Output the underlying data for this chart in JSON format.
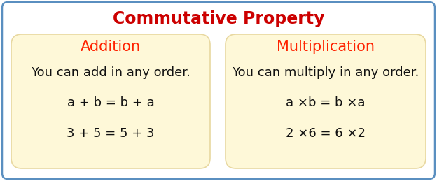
{
  "title": "Commutative Property",
  "title_color": "#cc0000",
  "title_fontsize": 17,
  "background_color": "#ffffff",
  "border_color": "#5a8fc0",
  "box_fill_color": "#fef8d8",
  "box_edge_color": "#e8d8a0",
  "left_box": {
    "heading": "Addition",
    "heading_color": "#ff2200",
    "heading_fontsize": 15,
    "lines": [
      "You can add in any order.",
      "a + b = b + a",
      "3 + 5 = 5 + 3"
    ],
    "line_fontsize": 13,
    "line_color": "#111111"
  },
  "right_box": {
    "heading": "Multiplication",
    "heading_color": "#ff2200",
    "heading_fontsize": 15,
    "lines": [
      "You can multiply in any order.",
      "a ×b = b ×a",
      "2 ×6 = 6 ×2"
    ],
    "line_fontsize": 13,
    "line_color": "#111111"
  }
}
